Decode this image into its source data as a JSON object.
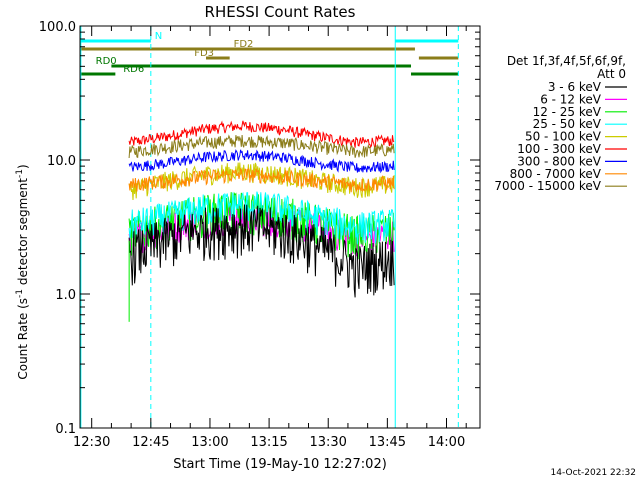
{
  "chart_data": {
    "type": "line",
    "title": "RHESSI Count Rates",
    "xlabel": "Start Time (19-May-10 12:27:02)",
    "ylabel_parts": [
      "Count Rate (s",
      "-1",
      " detector segment",
      "-1",
      ")"
    ],
    "y_scale": "log",
    "ylim": [
      0.1,
      100.0
    ],
    "y_ticks": [
      {
        "value": 0.1,
        "label": "0.1"
      },
      {
        "value": 1.0,
        "label": "1.0"
      },
      {
        "value": 10.0,
        "label": "10.0"
      },
      {
        "value": 100.0,
        "label": "100.0"
      }
    ],
    "xlim": [
      "12:27",
      "14:08"
    ],
    "x_ticks": [
      "12:30",
      "12:45",
      "13:00",
      "13:15",
      "13:30",
      "13:45",
      "14:00"
    ],
    "detector_header": [
      "Det 1f,3f,4f,5f,6f,9f,",
      "Att 0"
    ],
    "data_start": "12:39",
    "data_end": "13:47",
    "series": [
      {
        "name": "3 - 6 keV",
        "color": "#000000",
        "values": [
          2.0,
          2.6,
          3.1,
          3.3,
          3.0,
          2.3,
          1.6,
          1.9
        ]
      },
      {
        "name": "6 - 12 keV",
        "color": "#ff00ff",
        "values": [
          2.6,
          3.2,
          3.6,
          3.8,
          3.6,
          3.1,
          2.6,
          2.8
        ]
      },
      {
        "name": "12 - 25 keV",
        "color": "#00ee00",
        "values": [
          2.9,
          3.5,
          4.1,
          4.3,
          4.0,
          3.4,
          2.8,
          3.0
        ]
      },
      {
        "name": "25 - 50 keV",
        "color": "#00ffff",
        "values": [
          3.3,
          3.8,
          4.4,
          4.7,
          4.4,
          3.7,
          3.2,
          3.4
        ]
      },
      {
        "name": "50 - 100 keV",
        "color": "#cccc00",
        "values": [
          6.0,
          7.0,
          7.8,
          8.3,
          7.8,
          7.0,
          6.3,
          6.6
        ]
      },
      {
        "name": "100 - 300 keV",
        "color": "#ff0000",
        "values": [
          13.5,
          15.0,
          17.0,
          18.0,
          17.0,
          15.0,
          13.5,
          14.0
        ]
      },
      {
        "name": "300 - 800 keV",
        "color": "#0000ff",
        "values": [
          8.8,
          9.5,
          10.5,
          11.0,
          10.5,
          9.5,
          8.7,
          9.0
        ]
      },
      {
        "name": "800 - 7000 keV",
        "color": "#ff8800",
        "values": [
          6.5,
          7.0,
          7.5,
          7.8,
          7.5,
          7.0,
          6.5,
          6.8
        ]
      },
      {
        "name": "7000 - 15000 keV",
        "color": "#8b7d1a",
        "values": [
          11.5,
          12.5,
          13.5,
          14.0,
          13.5,
          12.5,
          11.5,
          12.0
        ]
      }
    ],
    "flag_bars": [
      {
        "label": "N",
        "color": "#00ffff",
        "segments": [
          [
            "12:27",
            "12:45"
          ],
          [
            "13:47",
            "14:03"
          ]
        ]
      },
      {
        "label": "FD2",
        "color": "#8b7d1a",
        "segments": [
          [
            "12:27",
            "13:52"
          ]
        ]
      },
      {
        "label": "FD3",
        "color": "#8b7d1a",
        "segments": [
          [
            "12:59",
            "13:05"
          ],
          [
            "13:53",
            "14:03"
          ]
        ]
      },
      {
        "label": "RD0",
        "color": "#007700",
        "segments": [
          [
            "12:35",
            "13:51"
          ]
        ]
      },
      {
        "label": "RD6",
        "color": "#007700",
        "segments": [
          [
            "12:27",
            "12:36"
          ],
          [
            "13:51",
            "14:03"
          ]
        ]
      }
    ],
    "vertical_markers": [
      {
        "time": "12:27",
        "style": "solid",
        "color": "#00ffff"
      },
      {
        "time": "12:45",
        "style": "dashed",
        "color": "#00ffff"
      },
      {
        "time": "13:47",
        "style": "solid",
        "color": "#00ffff"
      },
      {
        "time": "14:03",
        "style": "dashed",
        "color": "#00ffff"
      }
    ],
    "timestamp": "14-Oct-2021 22:32"
  }
}
